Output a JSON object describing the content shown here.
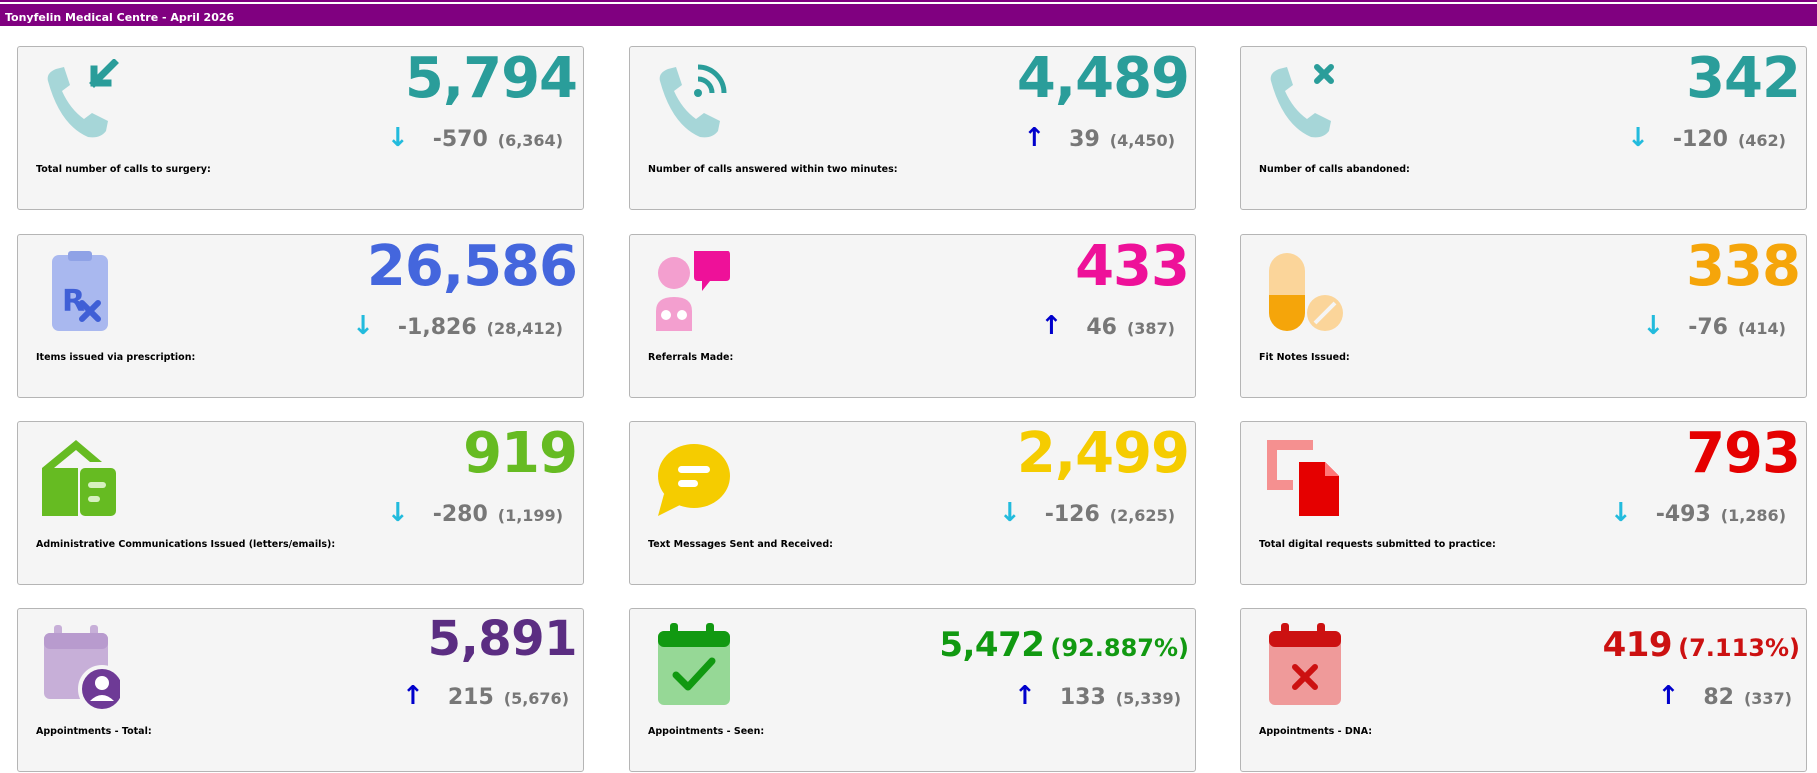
{
  "header": {
    "title": "Tonyfelin Medical Centre - April 2026"
  },
  "cards": [
    {
      "label": "Total number of calls to surgery:",
      "value": "5,794",
      "change": "-570",
      "previous": "(6,364)",
      "direction": "down",
      "arrow": "↓",
      "color": "#2a9d9a",
      "icon": "phone-incoming-icon"
    },
    {
      "label": "Number of calls answered within two minutes:",
      "value": "4,489",
      "change": "39",
      "previous": "(4,450)",
      "direction": "up",
      "arrow": "↑",
      "color": "#2a9d9a",
      "icon": "phone-signal-icon"
    },
    {
      "label": "Number of calls abandoned:",
      "value": "342",
      "change": "-120",
      "previous": "(462)",
      "direction": "down",
      "arrow": "↓",
      "color": "#2a9d9a",
      "icon": "phone-missed-icon"
    },
    {
      "label": "Items issued via prescription:",
      "value": "26,586",
      "change": "-1,826",
      "previous": "(28,412)",
      "direction": "down",
      "arrow": "↓",
      "color": "#4466dd",
      "icon": "prescription-icon"
    },
    {
      "label": "Referrals Made:",
      "value": "433",
      "change": "46",
      "previous": "(387)",
      "direction": "up",
      "arrow": "↑",
      "color": "#ee1199",
      "icon": "doctor-referral-icon"
    },
    {
      "label": "Fit Notes Issued:",
      "value": "338",
      "change": "-76",
      "previous": "(414)",
      "direction": "down",
      "arrow": "↓",
      "color": "#f5a50a",
      "icon": "pills-icon"
    },
    {
      "label": "Administrative Communications Issued (letters/emails):",
      "value": "919",
      "change": "-280",
      "previous": "(1,199)",
      "direction": "down",
      "arrow": "↓",
      "color": "#66bb22",
      "icon": "mail-house-icon"
    },
    {
      "label": "Text Messages Sent and Received:",
      "value": "2,499",
      "change": "-126",
      "previous": "(2,625)",
      "direction": "down",
      "arrow": "↓",
      "color": "#f5cc00",
      "icon": "chat-bubble-icon"
    },
    {
      "label": "Total digital requests submitted to practice:",
      "value": "793",
      "change": "-493",
      "previous": "(1,286)",
      "direction": "down",
      "arrow": "↓",
      "color": "#e50000",
      "icon": "digital-request-icon"
    },
    {
      "label": "Appointments - Total:",
      "value": "5,891",
      "percent": "",
      "change": "215",
      "previous": "(5,676)",
      "direction": "up",
      "arrow": "↑",
      "color": "#5b2d82",
      "icon": "calendar-person-icon"
    },
    {
      "label": "Appointments - Seen:",
      "value": "5,472",
      "percent": "(92.887%)",
      "change": "133",
      "previous": "(5,339)",
      "direction": "up",
      "arrow": "↑",
      "color": "#119911",
      "icon": "calendar-check-icon"
    },
    {
      "label": "Appointments - DNA:",
      "value": "419",
      "percent": "(7.113%)",
      "change": "82",
      "previous": "(337)",
      "direction": "up",
      "arrow": "↑",
      "color": "#cc1111",
      "icon": "calendar-cross-icon"
    }
  ]
}
